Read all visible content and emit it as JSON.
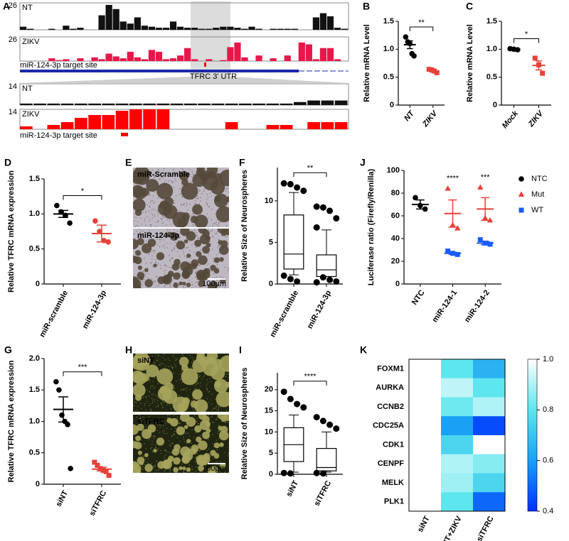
{
  "chart_data": [
    {
      "panel": "A",
      "type": "tracks",
      "tracks": [
        {
          "label": "NT",
          "color": "#111111",
          "ylim": [
            0,
            26
          ],
          "values": [
            3,
            1,
            0,
            0,
            1,
            0,
            4,
            1,
            2,
            0,
            0,
            14,
            24,
            20,
            8,
            6,
            12,
            4,
            3,
            2,
            2,
            8,
            3,
            2,
            2,
            1,
            1,
            2,
            3,
            3,
            2,
            1,
            3,
            1,
            0,
            1,
            1,
            1,
            1,
            0,
            0,
            12,
            16,
            13,
            2,
            1
          ]
        },
        {
          "label": "ZIKV",
          "color": "#e8174a",
          "ylim": [
            0,
            26
          ],
          "values": [
            0,
            0,
            0,
            0,
            3,
            1,
            2,
            0,
            3,
            0,
            4,
            2,
            8,
            5,
            3,
            10,
            4,
            2,
            12,
            10,
            2,
            3,
            6,
            14,
            2,
            0,
            2,
            0,
            1,
            15,
            20,
            4,
            0,
            6,
            0,
            3,
            0,
            6,
            0,
            20,
            18,
            2,
            14,
            14,
            2,
            0
          ]
        }
      ],
      "site_label": "miR-124-3p target site",
      "gene_label": "TFRC 3' UTR",
      "zoom_tracks": [
        {
          "label": "NT",
          "color": "#111111",
          "ylim": [
            0,
            14
          ],
          "values": [
            1,
            1,
            1,
            1,
            1,
            1,
            1,
            1,
            1,
            1,
            1,
            1,
            1,
            1,
            1,
            1,
            1,
            1,
            1,
            1,
            2,
            3,
            3,
            3
          ]
        },
        {
          "label": "ZIKV",
          "color": "#ff0000",
          "ylim": [
            0,
            14
          ],
          "values": [
            2,
            0,
            3,
            5,
            8,
            10,
            10,
            13,
            14,
            14,
            14,
            0,
            0,
            0,
            0,
            5,
            0,
            0,
            3,
            3,
            0,
            5,
            5,
            5
          ]
        }
      ],
      "zoom_site_label": "miR-124-3p target site"
    },
    {
      "panel": "B",
      "type": "dotplot",
      "ylabel": "Relative mRNA Level",
      "categories": [
        "NT",
        "ZIKV"
      ],
      "italic": true,
      "ylim": [
        0,
        1.5
      ],
      "yticks": [
        0,
        0.5,
        {
          "value": 1,
          "label": "1.0"
        },
        1.5
      ],
      "series": [
        {
          "color": "#000000",
          "marker": "circle",
          "values": [
            [
              1.22,
              1.13,
              1.1,
              0.92,
              0.88
            ],
            null
          ],
          "means": [
            1.08,
            null
          ],
          "sems": [
            0.07,
            null
          ]
        },
        {
          "color": "#e8403a",
          "marker": "square",
          "values": [
            null,
            [
              0.64,
              0.63,
              0.61,
              0.58
            ]
          ],
          "means": [
            null,
            0.61
          ],
          "sems": [
            null,
            0.02
          ]
        }
      ],
      "significance": "**"
    },
    {
      "panel": "C",
      "type": "dotplot",
      "ylabel": "Relative mRNA Level",
      "categories": [
        "Mock",
        "ZIKV"
      ],
      "italic": true,
      "ylim": [
        0,
        1.5
      ],
      "yticks": [
        0,
        0.5,
        {
          "value": 1,
          "label": "1.0"
        },
        1.5
      ],
      "series": [
        {
          "color": "#000000",
          "marker": "circle",
          "values": [
            [
              1.01,
              1.0,
              0.99
            ],
            null
          ],
          "means": [
            1.0,
            null
          ],
          "sems": [
            0.01,
            null
          ]
        },
        {
          "color": "#e8403a",
          "marker": "square",
          "values": [
            null,
            [
              0.84,
              0.72,
              0.57
            ]
          ],
          "means": [
            null,
            0.71
          ],
          "sems": [
            null,
            0.08
          ]
        }
      ],
      "significance": "*"
    },
    {
      "panel": "D",
      "type": "dotplot",
      "ylabel": "Relative TFRC mRNA expression",
      "categories": [
        "miR-scramble",
        "miR-124-3p"
      ],
      "ylim": [
        0,
        1.5
      ],
      "yticks": [
        0,
        0.5,
        {
          "value": 1,
          "label": "1.0"
        },
        1.5
      ],
      "series": [
        {
          "color": "#000000",
          "marker": "circle",
          "values": [
            [
              1.12,
              1.03,
              0.98,
              0.87
            ],
            null
          ],
          "means": [
            1.0,
            null
          ],
          "sems": [
            0.05,
            null
          ]
        },
        {
          "color": "#e8403a",
          "marker": "circle",
          "values": [
            null,
            [
              0.9,
              0.75,
              0.62,
              0.6
            ]
          ],
          "means": [
            null,
            0.72
          ],
          "sems": [
            null,
            0.12
          ]
        }
      ],
      "significance": "*"
    },
    {
      "panel": "E",
      "type": "micrograph",
      "images": [
        "miR-Scramble",
        "miR-124-3p"
      ],
      "scale_bar": "100μm",
      "background": "#bdb8c2",
      "sphere_color": "#54493a"
    },
    {
      "panel": "F",
      "type": "boxplot",
      "ylabel": "Relative Size of Neurospheres",
      "categories": [
        "miR-scramble",
        "miR-124-3p"
      ],
      "ylim": [
        0,
        14
      ],
      "yticks": [
        0,
        5,
        10
      ],
      "boxes": [
        {
          "q1": 1.8,
          "median": 3.6,
          "q3": 8.3,
          "whislo": 1.1,
          "whishi": 11,
          "fliers": [
            12.1,
            12.0,
            11.6,
            11.2,
            1.0,
            0.6,
            0.3
          ]
        },
        {
          "q1": 0.9,
          "median": 1.7,
          "q3": 3.5,
          "whislo": 0.9,
          "whishi": 6.5,
          "fliers": [
            9.3,
            9.2,
            8.8,
            7.9,
            6.8,
            0.8,
            0.5,
            0.3,
            0.2
          ]
        }
      ],
      "significance": "**"
    },
    {
      "panel": "J",
      "type": "dotplot",
      "ylabel": "Luciferase ratio (Firefly/Renilla)",
      "categories": [
        "NTC",
        "miR-124-1",
        "miR-124-2"
      ],
      "ylim": [
        0,
        100
      ],
      "yticks": [
        0,
        20,
        40,
        60,
        80,
        100
      ],
      "series": [
        {
          "name": "NTC",
          "color": "#000000",
          "marker": "circle",
          "values": [
            [
              76,
              69,
              66
            ],
            null,
            null
          ],
          "means": [
            70,
            null,
            null
          ],
          "sems": [
            4,
            null,
            null
          ]
        },
        {
          "name": "Mut",
          "color": "#e8403a",
          "marker": "triangle",
          "values": [
            null,
            [
              84,
              52,
              49
            ],
            [
              85,
              58,
              56
            ]
          ],
          "means": [
            null,
            62,
            66
          ],
          "sems": [
            null,
            12,
            10
          ]
        },
        {
          "name": "WT",
          "color": "#1a5cff",
          "marker": "square",
          "values": [
            null,
            [
              29,
              27,
              26
            ],
            [
              39,
              36,
              35
            ]
          ],
          "means": [
            null,
            27,
            36
          ],
          "sems": [
            null,
            1,
            1.5
          ]
        }
      ],
      "annotations": [
        null,
        "****",
        "***"
      ]
    },
    {
      "panel": "G",
      "type": "dotplot",
      "ylabel": "Relative TFRC mRNA expression",
      "categories": [
        "siNT",
        "siTFRC"
      ],
      "ylim": [
        0,
        2
      ],
      "yticks": [
        0,
        0.5,
        {
          "value": 1,
          "label": "1.0"
        },
        1.5,
        {
          "value": 2,
          "label": "2.0"
        }
      ],
      "series": [
        {
          "color": "#000000",
          "marker": "circle",
          "values": [
            [
              1.63,
              1.5,
              1.1,
              1.0,
              0.95,
              0.25
            ],
            null
          ],
          "means": [
            1.19,
            null
          ],
          "sems": [
            0.2,
            null
          ]
        },
        {
          "color": "#e8403a",
          "marker": "square",
          "values": [
            null,
            [
              0.35,
              0.3,
              0.25,
              0.22,
              0.2,
              0.14
            ]
          ],
          "means": [
            null,
            0.24
          ],
          "sems": [
            null,
            0.03
          ]
        }
      ],
      "significance": "***"
    },
    {
      "panel": "H",
      "type": "micrograph",
      "images": [
        "siNT",
        "siTFRC"
      ],
      "scale_bar": "100μm",
      "background": "#1f2510",
      "sphere_color": "#a6a45c"
    },
    {
      "panel": "I",
      "type": "boxplot",
      "ylabel": "Relative Size of Neurospheres",
      "categories": [
        "siNT",
        "siTFRC"
      ],
      "ylim": [
        0,
        24
      ],
      "yticks": [
        0,
        5,
        10,
        15,
        20
      ],
      "boxes": [
        {
          "q1": 3,
          "median": 7,
          "q3": 11,
          "whislo": 0.5,
          "whishi": 14,
          "fliers": [
            19.5,
            17.8,
            16.6,
            15.8,
            0.3,
            0.2
          ]
        },
        {
          "q1": 0.8,
          "median": 1.6,
          "q3": 6.1,
          "whislo": 0.5,
          "whishi": 10,
          "fliers": [
            13.5,
            12.6,
            11.7,
            10.8,
            0.3,
            0.2
          ]
        }
      ],
      "significance": "****"
    },
    {
      "panel": "K",
      "type": "heatmap",
      "rows": [
        "FOXM1",
        "AURKA",
        "CCNB2",
        "CDC25A",
        "CDK1",
        "CENPF",
        "MELK",
        "PLK1"
      ],
      "columns": [
        "siNT",
        "siNT+ZIKV",
        "siTFRC"
      ],
      "values": [
        [
          1,
          0.8,
          0.65
        ],
        [
          1,
          0.92,
          0.8
        ],
        [
          1,
          0.82,
          0.9
        ],
        [
          1,
          0.6,
          0.45
        ],
        [
          1,
          0.75,
          1
        ],
        [
          1,
          0.9,
          0.85
        ],
        [
          1,
          0.88,
          0.75
        ],
        [
          1,
          0.8,
          0.5
        ]
      ],
      "zlim": [
        0.4,
        1
      ],
      "zticks": [
        0.4,
        0.6,
        0.8,
        {
          "value": 1,
          "label": "1.0"
        }
      ],
      "colormap": [
        "#0030ff",
        "#1aa0f5",
        "#5ee6ee",
        "#ffffff"
      ]
    }
  ]
}
